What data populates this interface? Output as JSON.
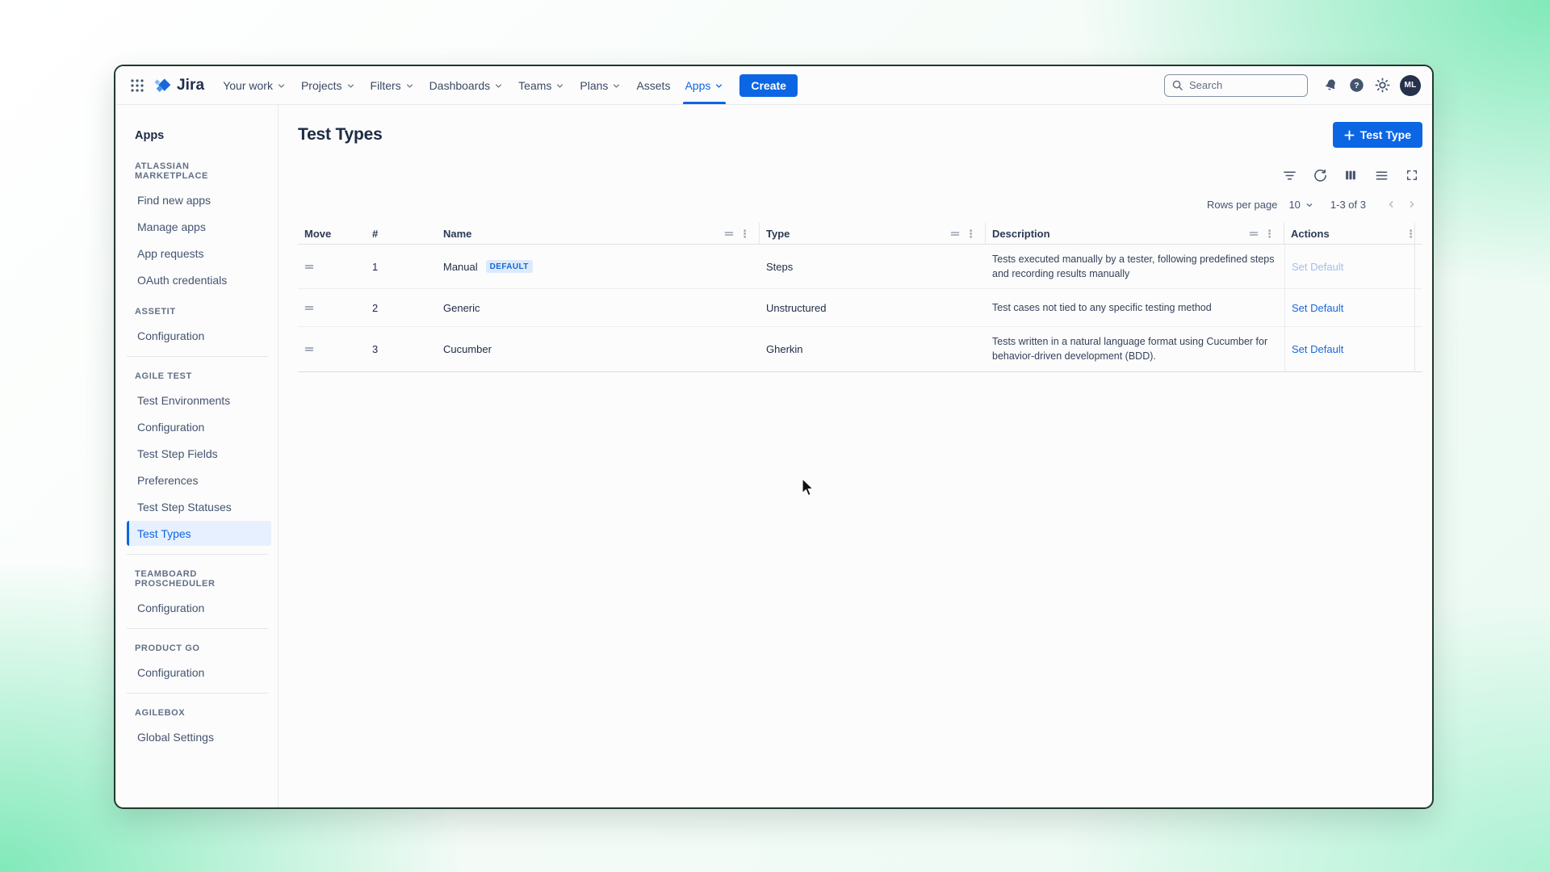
{
  "navbar": {
    "app_name": "Jira",
    "items": [
      {
        "label": "Your work",
        "dropdown": true
      },
      {
        "label": "Projects",
        "dropdown": true
      },
      {
        "label": "Filters",
        "dropdown": true
      },
      {
        "label": "Dashboards",
        "dropdown": true
      },
      {
        "label": "Teams",
        "dropdown": true
      },
      {
        "label": "Plans",
        "dropdown": true
      },
      {
        "label": "Assets",
        "dropdown": false
      },
      {
        "label": "Apps",
        "dropdown": true,
        "active": true
      }
    ],
    "create_label": "Create",
    "search_placeholder": "Search",
    "avatar_initials": "ML"
  },
  "sidebar": {
    "title": "Apps",
    "sections": [
      {
        "heading": "ATLASSIAN MARKETPLACE",
        "items": [
          "Find new apps",
          "Manage apps",
          "App requests",
          "OAuth credentials"
        ],
        "divider_after": false
      },
      {
        "heading": "ASSETIT",
        "items": [
          "Configuration"
        ],
        "divider_after": true
      },
      {
        "heading": "AGILE TEST",
        "items": [
          "Test Environments",
          "Configuration",
          "Test Step Fields",
          "Preferences",
          "Test Step Statuses",
          "Test Types"
        ],
        "active_item": "Test Types",
        "divider_after": true
      },
      {
        "heading": "TEAMBOARD PROSCHEDULER",
        "items": [
          "Configuration"
        ],
        "divider_after": true
      },
      {
        "heading": "PRODUCT GO",
        "items": [
          "Configuration"
        ],
        "divider_after": true
      },
      {
        "heading": "AGILEBOX",
        "items": [
          "Global Settings"
        ],
        "divider_after": false
      }
    ]
  },
  "main": {
    "title": "Test Types",
    "add_button_label": "Test Type",
    "toolbar_icons": [
      "filter",
      "refresh",
      "columns",
      "density",
      "fullscreen"
    ],
    "pagination": {
      "rows_label": "Rows per page",
      "rows_value": "10",
      "range": "1-3 of 3"
    },
    "table": {
      "columns": [
        {
          "label": "Move"
        },
        {
          "label": "#"
        },
        {
          "label": "Name",
          "icons": true
        },
        {
          "label": "Type",
          "icons": true
        },
        {
          "label": "Description",
          "icons": true
        },
        {
          "label": "Actions",
          "menu": true
        }
      ],
      "rows": [
        {
          "index": "1",
          "name": "Manual",
          "badge": "DEFAULT",
          "type": "Steps",
          "description": "Tests executed manually by a tester, following predefined steps and recording results manually",
          "action": "Set Default",
          "action_disabled": true
        },
        {
          "index": "2",
          "name": "Generic",
          "badge": null,
          "type": "Unstructured",
          "description": "Test cases not tied to any specific testing method",
          "action": "Set Default",
          "action_disabled": false
        },
        {
          "index": "3",
          "name": "Cucumber",
          "badge": null,
          "type": "Gherkin",
          "description": "Tests written in a natural language format using Cucumber for behavior-driven development (BDD).",
          "action": "Set Default",
          "action_disabled": false
        }
      ]
    }
  },
  "colors": {
    "accent": "#0C66E4",
    "badge_bg": "#DCEAFC",
    "badge_text": "#1868DB",
    "link": "#1868DB",
    "link_disabled": "#A5BEE8",
    "window_border": "#21392E"
  }
}
